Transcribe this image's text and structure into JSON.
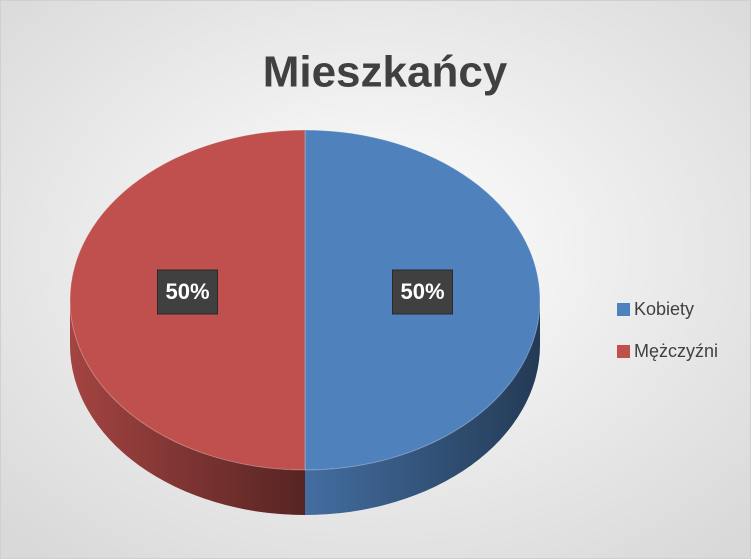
{
  "chart_data": {
    "type": "pie",
    "title": "Mieszkańcy",
    "categories": [
      "Kobiety",
      "Mężczyźni"
    ],
    "values": [
      50,
      50
    ],
    "value_labels": [
      "50%",
      "50%"
    ],
    "colors": [
      "#4f81bd",
      "#c0504d"
    ],
    "legend": "right",
    "style": "3d"
  }
}
